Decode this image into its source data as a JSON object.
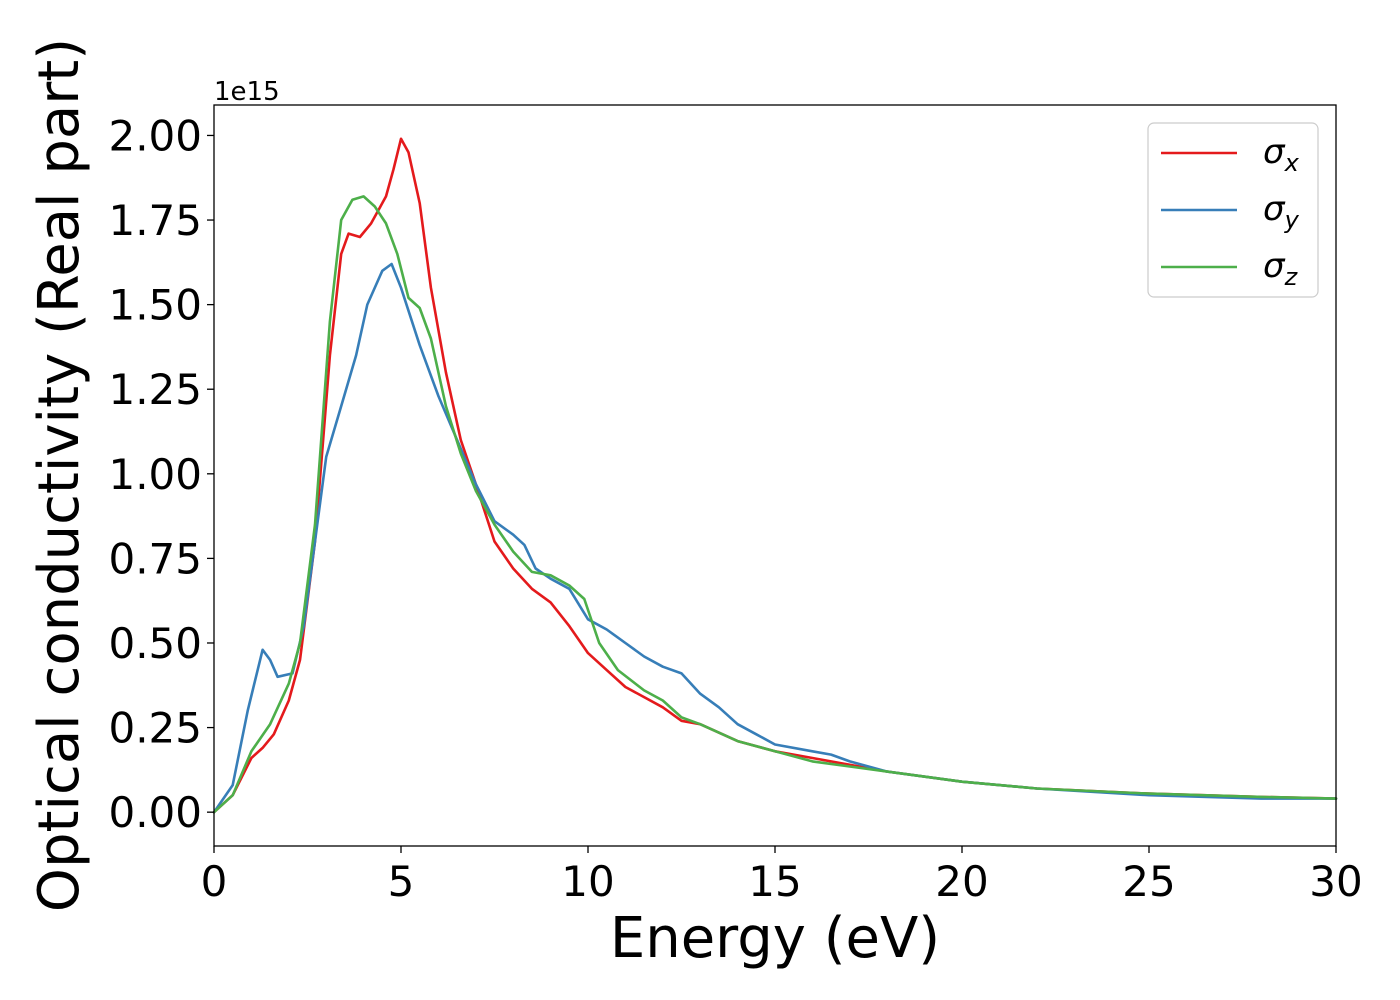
{
  "chart_data": {
    "type": "line",
    "xlabel": "Energy (eV)",
    "ylabel": "Optical conductivity (Real part)",
    "y_offset_label": "1e15",
    "xlim": [
      0,
      30
    ],
    "ylim": [
      -0.1,
      2.09
    ],
    "x_ticks": [
      0,
      5,
      10,
      15,
      20,
      25,
      30
    ],
    "x_tick_labels": [
      "0",
      "5",
      "10",
      "15",
      "20",
      "25",
      "30"
    ],
    "y_ticks": [
      0.0,
      0.25,
      0.5,
      0.75,
      1.0,
      1.25,
      1.5,
      1.75,
      2.0
    ],
    "y_tick_labels": [
      "0.00",
      "0.25",
      "0.50",
      "0.75",
      "1.00",
      "1.25",
      "1.50",
      "1.75",
      "2.00"
    ],
    "grid": false,
    "legend_position": "top-right",
    "series": [
      {
        "name": "σ",
        "subscript": "x",
        "color": "#e41a1c",
        "points": [
          [
            0,
            0
          ],
          [
            0.5,
            0.05
          ],
          [
            1.0,
            0.16
          ],
          [
            1.3,
            0.19
          ],
          [
            1.6,
            0.23
          ],
          [
            2.0,
            0.33
          ],
          [
            2.3,
            0.45
          ],
          [
            2.7,
            0.8
          ],
          [
            3.1,
            1.35
          ],
          [
            3.4,
            1.65
          ],
          [
            3.6,
            1.71
          ],
          [
            3.9,
            1.7
          ],
          [
            4.2,
            1.74
          ],
          [
            4.6,
            1.82
          ],
          [
            4.8,
            1.9
          ],
          [
            5.0,
            1.99
          ],
          [
            5.2,
            1.95
          ],
          [
            5.5,
            1.8
          ],
          [
            5.8,
            1.55
          ],
          [
            6.2,
            1.3
          ],
          [
            6.6,
            1.1
          ],
          [
            7.0,
            0.97
          ],
          [
            7.5,
            0.8
          ],
          [
            8.0,
            0.72
          ],
          [
            8.5,
            0.66
          ],
          [
            9.0,
            0.62
          ],
          [
            9.5,
            0.55
          ],
          [
            10.0,
            0.47
          ],
          [
            10.5,
            0.42
          ],
          [
            11.0,
            0.37
          ],
          [
            11.5,
            0.34
          ],
          [
            12.0,
            0.31
          ],
          [
            12.5,
            0.27
          ],
          [
            13.0,
            0.26
          ],
          [
            14.0,
            0.21
          ],
          [
            15.0,
            0.18
          ],
          [
            16.0,
            0.16
          ],
          [
            17.0,
            0.14
          ],
          [
            18.0,
            0.12
          ],
          [
            20.0,
            0.09
          ],
          [
            22.0,
            0.07
          ],
          [
            25.0,
            0.055
          ],
          [
            28.0,
            0.045
          ],
          [
            30.0,
            0.04
          ]
        ]
      },
      {
        "name": "σ",
        "subscript": "y",
        "color": "#377eb8",
        "points": [
          [
            0,
            0
          ],
          [
            0.5,
            0.08
          ],
          [
            0.9,
            0.3
          ],
          [
            1.3,
            0.48
          ],
          [
            1.5,
            0.45
          ],
          [
            1.7,
            0.4
          ],
          [
            2.1,
            0.41
          ],
          [
            2.4,
            0.55
          ],
          [
            2.7,
            0.8
          ],
          [
            3.0,
            1.05
          ],
          [
            3.4,
            1.2
          ],
          [
            3.8,
            1.35
          ],
          [
            4.1,
            1.5
          ],
          [
            4.5,
            1.6
          ],
          [
            4.75,
            1.62
          ],
          [
            5.0,
            1.55
          ],
          [
            5.5,
            1.38
          ],
          [
            6.0,
            1.23
          ],
          [
            6.5,
            1.1
          ],
          [
            7.0,
            0.97
          ],
          [
            7.5,
            0.86
          ],
          [
            8.0,
            0.82
          ],
          [
            8.3,
            0.79
          ],
          [
            8.6,
            0.72
          ],
          [
            9.0,
            0.69
          ],
          [
            9.5,
            0.66
          ],
          [
            10.0,
            0.57
          ],
          [
            10.5,
            0.54
          ],
          [
            11.0,
            0.5
          ],
          [
            11.5,
            0.46
          ],
          [
            12.0,
            0.43
          ],
          [
            12.5,
            0.41
          ],
          [
            13.0,
            0.35
          ],
          [
            13.5,
            0.31
          ],
          [
            14.0,
            0.26
          ],
          [
            14.5,
            0.23
          ],
          [
            15.0,
            0.2
          ],
          [
            16.0,
            0.18
          ],
          [
            16.5,
            0.17
          ],
          [
            17.0,
            0.15
          ],
          [
            18.0,
            0.12
          ],
          [
            20.0,
            0.09
          ],
          [
            22.0,
            0.07
          ],
          [
            25.0,
            0.05
          ],
          [
            28.0,
            0.04
          ],
          [
            30.0,
            0.04
          ]
        ]
      },
      {
        "name": "σ",
        "subscript": "z",
        "color": "#4daf4a",
        "points": [
          [
            0,
            0
          ],
          [
            0.5,
            0.05
          ],
          [
            1.0,
            0.18
          ],
          [
            1.5,
            0.26
          ],
          [
            2.0,
            0.38
          ],
          [
            2.3,
            0.5
          ],
          [
            2.7,
            0.85
          ],
          [
            3.1,
            1.45
          ],
          [
            3.4,
            1.75
          ],
          [
            3.7,
            1.81
          ],
          [
            4.0,
            1.82
          ],
          [
            4.3,
            1.79
          ],
          [
            4.6,
            1.74
          ],
          [
            4.9,
            1.65
          ],
          [
            5.2,
            1.52
          ],
          [
            5.5,
            1.49
          ],
          [
            5.8,
            1.4
          ],
          [
            6.2,
            1.2
          ],
          [
            6.6,
            1.06
          ],
          [
            7.0,
            0.95
          ],
          [
            7.5,
            0.85
          ],
          [
            8.0,
            0.77
          ],
          [
            8.5,
            0.71
          ],
          [
            9.0,
            0.7
          ],
          [
            9.5,
            0.67
          ],
          [
            9.9,
            0.63
          ],
          [
            10.3,
            0.5
          ],
          [
            10.8,
            0.42
          ],
          [
            11.5,
            0.36
          ],
          [
            12.0,
            0.33
          ],
          [
            12.5,
            0.28
          ],
          [
            13.0,
            0.26
          ],
          [
            14.0,
            0.21
          ],
          [
            15.0,
            0.18
          ],
          [
            16.0,
            0.15
          ],
          [
            17.0,
            0.135
          ],
          [
            18.0,
            0.12
          ],
          [
            20.0,
            0.09
          ],
          [
            22.0,
            0.07
          ],
          [
            25.0,
            0.055
          ],
          [
            28.0,
            0.045
          ],
          [
            30.0,
            0.04
          ]
        ]
      }
    ]
  }
}
